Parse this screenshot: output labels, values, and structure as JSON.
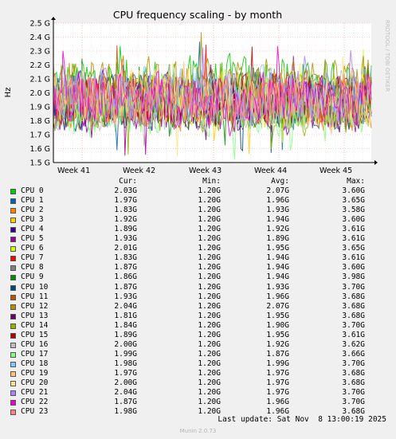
{
  "chart_data": {
    "type": "line",
    "title": "CPU frequency scaling - by month",
    "ylabel": "Hz",
    "side_label": "RRDTOOL / TOBI OETIKER",
    "ylim": [
      1.5,
      2.5
    ],
    "yticks": [
      "1.5 G",
      "1.6 G",
      "1.7 G",
      "1.8 G",
      "1.9 G",
      "2.0 G",
      "2.1 G",
      "2.2 G",
      "2.3 G",
      "2.4 G",
      "2.5 G"
    ],
    "xticks": [
      "Week 41",
      "Week 42",
      "Week 43",
      "Week 44",
      "Week 45"
    ],
    "grid": true,
    "columns": {
      "cur": "Cur:",
      "min": "Min:",
      "avg": "Avg:",
      "max": "Max:"
    },
    "series": [
      {
        "name": "CPU 0",
        "color": "#00cc00",
        "cur": "2.03G",
        "min": "1.20G",
        "avg": "2.07G",
        "max": "3.60G"
      },
      {
        "name": "CPU 1",
        "color": "#0066b3",
        "cur": "1.97G",
        "min": "1.20G",
        "avg": "1.96G",
        "max": "3.65G"
      },
      {
        "name": "CPU 2",
        "color": "#ff8000",
        "cur": "1.83G",
        "min": "1.20G",
        "avg": "1.93G",
        "max": "3.58G"
      },
      {
        "name": "CPU 3",
        "color": "#ffcc00",
        "cur": "1.92G",
        "min": "1.20G",
        "avg": "1.94G",
        "max": "3.60G"
      },
      {
        "name": "CPU 4",
        "color": "#330099",
        "cur": "1.89G",
        "min": "1.20G",
        "avg": "1.92G",
        "max": "3.61G"
      },
      {
        "name": "CPU 5",
        "color": "#990099",
        "cur": "1.93G",
        "min": "1.20G",
        "avg": "1.89G",
        "max": "3.61G"
      },
      {
        "name": "CPU 6",
        "color": "#ccff00",
        "cur": "2.01G",
        "min": "1.20G",
        "avg": "1.95G",
        "max": "3.65G"
      },
      {
        "name": "CPU 7",
        "color": "#ff0000",
        "cur": "1.83G",
        "min": "1.20G",
        "avg": "1.94G",
        "max": "3.61G"
      },
      {
        "name": "CPU 8",
        "color": "#808080",
        "cur": "1.87G",
        "min": "1.20G",
        "avg": "1.94G",
        "max": "3.60G"
      },
      {
        "name": "CPU 9",
        "color": "#008f00",
        "cur": "1.86G",
        "min": "1.20G",
        "avg": "1.94G",
        "max": "3.98G"
      },
      {
        "name": "CPU 10",
        "color": "#00487d",
        "cur": "1.87G",
        "min": "1.20G",
        "avg": "1.93G",
        "max": "3.70G"
      },
      {
        "name": "CPU 11",
        "color": "#b35a00",
        "cur": "1.93G",
        "min": "1.20G",
        "avg": "1.96G",
        "max": "3.68G"
      },
      {
        "name": "CPU 12",
        "color": "#b38f00",
        "cur": "2.04G",
        "min": "1.20G",
        "avg": "2.07G",
        "max": "3.68G"
      },
      {
        "name": "CPU 13",
        "color": "#6b006b",
        "cur": "1.81G",
        "min": "1.20G",
        "avg": "1.95G",
        "max": "3.68G"
      },
      {
        "name": "CPU 14",
        "color": "#8fb300",
        "cur": "1.84G",
        "min": "1.20G",
        "avg": "1.90G",
        "max": "3.70G"
      },
      {
        "name": "CPU 15",
        "color": "#b30000",
        "cur": "1.89G",
        "min": "1.20G",
        "avg": "1.95G",
        "max": "3.61G"
      },
      {
        "name": "CPU 16",
        "color": "#bebebe",
        "cur": "2.00G",
        "min": "1.20G",
        "avg": "1.92G",
        "max": "3.62G"
      },
      {
        "name": "CPU 17",
        "color": "#80ff80",
        "cur": "1.99G",
        "min": "1.20G",
        "avg": "1.87G",
        "max": "3.66G"
      },
      {
        "name": "CPU 18",
        "color": "#80c9ff",
        "cur": "1.98G",
        "min": "1.20G",
        "avg": "1.99G",
        "max": "3.70G"
      },
      {
        "name": "CPU 19",
        "color": "#ffc080",
        "cur": "1.97G",
        "min": "1.20G",
        "avg": "1.97G",
        "max": "3.68G"
      },
      {
        "name": "CPU 20",
        "color": "#ffe680",
        "cur": "2.00G",
        "min": "1.20G",
        "avg": "1.97G",
        "max": "3.68G"
      },
      {
        "name": "CPU 21",
        "color": "#aa80ff",
        "cur": "2.04G",
        "min": "1.20G",
        "avg": "1.97G",
        "max": "3.70G"
      },
      {
        "name": "CPU 22",
        "color": "#ee00cc",
        "cur": "1.87G",
        "min": "1.20G",
        "avg": "1.96G",
        "max": "3.70G"
      },
      {
        "name": "CPU 23",
        "color": "#ff8080",
        "cur": "1.98G",
        "min": "1.20G",
        "avg": "1.96G",
        "max": "3.68G"
      }
    ]
  },
  "last_update": "Last update: Sat Nov  8 13:00:19 2025",
  "footer": "Munin 2.0.73"
}
